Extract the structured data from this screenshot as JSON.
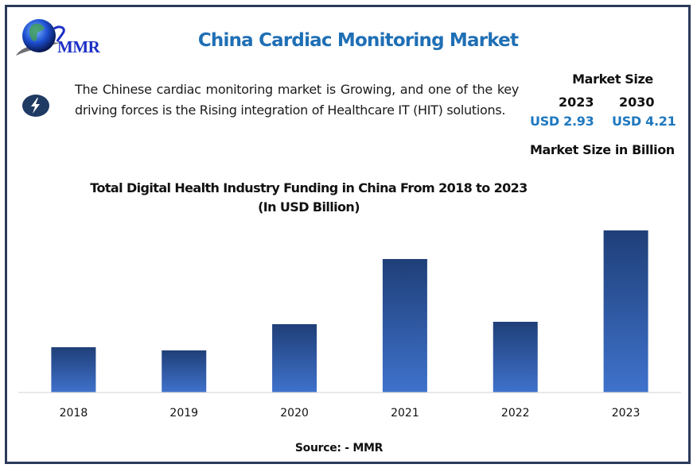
{
  "logo": {
    "text": "MMR",
    "icon": "globe-icon"
  },
  "header": {
    "title": "China Cardiac Monitoring Market"
  },
  "highlight": {
    "icon": "lightning-bolt-icon",
    "text": "The Chinese cardiac monitoring market is Growing, and one of the key driving forces is the Rising integration of Healthcare IT (HIT) solutions."
  },
  "market_size": {
    "heading": "Market Size",
    "years": [
      {
        "year": "2023",
        "value": "USD 2.93"
      },
      {
        "year": "2030",
        "value": "USD 4.21"
      }
    ],
    "unit_label": "Market Size in Billion"
  },
  "colors": {
    "title": "#1f6fb5",
    "value_blue": "#1e78bf",
    "frame": "#2b3a5a",
    "bar_top": "#1f3f78",
    "bar_bottom": "#3f72cc",
    "baseline": "#d9d9d9"
  },
  "chart_data": {
    "type": "bar",
    "title": "Total Digital Health Industry Funding in China From 2018 to 2023",
    "subtitle": "(In USD Billion)",
    "categories": [
      "2018",
      "2019",
      "2020",
      "2021",
      "2022",
      "2023"
    ],
    "values": [
      1.14,
      1.06,
      1.72,
      3.36,
      1.78,
      4.08
    ],
    "xlabel": "",
    "ylabel": "",
    "ylim": [
      0,
      4.08
    ],
    "grid": false,
    "legend": "none",
    "note": "No y-axis or data labels shown; values estimated from relative bar heights"
  },
  "footer": {
    "source": "Source: - MMR"
  }
}
